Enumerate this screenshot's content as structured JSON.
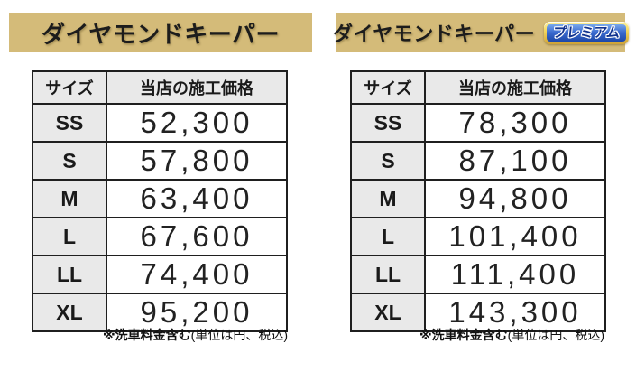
{
  "colors": {
    "band_gold": "#d4bb79",
    "table_border": "#1f1f1f",
    "cell_gray": "#e9e9e9",
    "badge_frame_gold": "#cfa235",
    "badge_blue": "#1c47a8",
    "badge_text_navy": "#11338f"
  },
  "panels": [
    {
      "title": "ダイヤモンドキーパー",
      "table": {
        "size_header": "サイズ",
        "price_header": "当店の施工価格",
        "rows": [
          {
            "size": "SS",
            "price": "52,300"
          },
          {
            "size": "S",
            "price": "57,800"
          },
          {
            "size": "M",
            "price": "63,400"
          },
          {
            "size": "L",
            "price": "67,600"
          },
          {
            "size": "LL",
            "price": "74,400"
          },
          {
            "size": "XL",
            "price": "95,200"
          }
        ]
      },
      "footnote": {
        "bold": "※洗車料金含む",
        "normal": "(単位は円、税込)"
      }
    },
    {
      "title": "ダイヤモンドキーパー",
      "badge": "プレミアム",
      "table": {
        "size_header": "サイズ",
        "price_header": "当店の施工価格",
        "rows": [
          {
            "size": "SS",
            "price": "78,300"
          },
          {
            "size": "S",
            "price": "87,100"
          },
          {
            "size": "M",
            "price": "94,800"
          },
          {
            "size": "L",
            "price": "101,400"
          },
          {
            "size": "LL",
            "price": "111,400"
          },
          {
            "size": "XL",
            "price": "143,300"
          }
        ]
      },
      "footnote": {
        "bold": "※洗車料金含む",
        "normal": "(単位は円、税込)"
      }
    }
  ]
}
